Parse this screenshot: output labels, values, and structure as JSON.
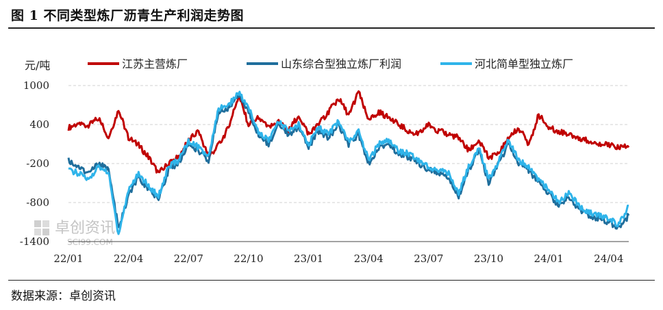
{
  "header": {
    "title": "图 1 不同类型炼厂沥青生产利润走势图"
  },
  "footer": {
    "source": "数据来源：卓创资讯"
  },
  "watermark": {
    "name": "卓创资讯",
    "site": "SCI99.COM"
  },
  "chart_data": {
    "type": "line",
    "ylabel": "元/吨",
    "ylim": [
      -1400,
      1000
    ],
    "yticks": [
      1000,
      400,
      -200,
      -800,
      -1400
    ],
    "xticks": [
      "22/01",
      "22/04",
      "22/07",
      "22/10",
      "23/01",
      "23/04",
      "23/07",
      "23/10",
      "24/01",
      "24/04"
    ],
    "xlim": [
      "22/01",
      "24/05"
    ],
    "grid": "horizontal-dashed",
    "legend": "top",
    "series": [
      {
        "name": "江苏主营炼厂",
        "color": "#c00000",
        "points": [
          [
            "22/01",
            350
          ],
          [
            "22/01.5",
            420
          ],
          [
            "22/02",
            380
          ],
          [
            "22/02.5",
            500
          ],
          [
            "22/03",
            200
          ],
          [
            "22/03.5",
            620
          ],
          [
            "22/04",
            200
          ],
          [
            "22/04.5",
            80
          ],
          [
            "22/05",
            -100
          ],
          [
            "22/05.5",
            -350
          ],
          [
            "22/06",
            -200
          ],
          [
            "22/06.5",
            -100
          ],
          [
            "22/07",
            150
          ],
          [
            "22/07.5",
            300
          ],
          [
            "22/08",
            -100
          ],
          [
            "22/08.5",
            80
          ],
          [
            "22/09",
            350
          ],
          [
            "22/09.5",
            850
          ],
          [
            "22/10",
            400
          ],
          [
            "22/10.5",
            500
          ],
          [
            "22/11",
            350
          ],
          [
            "22/11.5",
            450
          ],
          [
            "22/12",
            300
          ],
          [
            "22/12.5",
            550
          ],
          [
            "23/01",
            250
          ],
          [
            "23/01.5",
            400
          ],
          [
            "23/02",
            600
          ],
          [
            "23/02.5",
            800
          ],
          [
            "23/03",
            550
          ],
          [
            "23/03.5",
            900
          ],
          [
            "23/04",
            450
          ],
          [
            "23/04.5",
            600
          ],
          [
            "23/05",
            500
          ],
          [
            "23/05.5",
            400
          ],
          [
            "23/06",
            300
          ],
          [
            "23/06.5",
            250
          ],
          [
            "23/07",
            400
          ],
          [
            "23/07.5",
            300
          ],
          [
            "23/08",
            250
          ],
          [
            "23/08.5",
            200
          ],
          [
            "23/09",
            0
          ],
          [
            "23/09.5",
            150
          ],
          [
            "23/10",
            -100
          ],
          [
            "23/10.5",
            -50
          ],
          [
            "23/11",
            200
          ],
          [
            "23/11.5",
            350
          ],
          [
            "23/12",
            100
          ],
          [
            "23/12.5",
            550
          ],
          [
            "24/01",
            350
          ],
          [
            "24/01.5",
            300
          ],
          [
            "24/02",
            250
          ],
          [
            "24/02.5",
            200
          ],
          [
            "24/03",
            150
          ],
          [
            "24/03.5",
            100
          ],
          [
            "24/04",
            80
          ],
          [
            "24/04.5",
            50
          ],
          [
            "24/05",
            50
          ]
        ]
      },
      {
        "name": "山东综合型独立炼厂利润",
        "color": "#1f6e9c",
        "points": [
          [
            "22/01",
            -150
          ],
          [
            "22/01.5",
            -250
          ],
          [
            "22/02",
            -350
          ],
          [
            "22/02.5",
            -200
          ],
          [
            "22/03",
            -300
          ],
          [
            "22/03.5",
            -1200
          ],
          [
            "22/04",
            -700
          ],
          [
            "22/04.5",
            -400
          ],
          [
            "22/05",
            -600
          ],
          [
            "22/05.5",
            -750
          ],
          [
            "22/06",
            -300
          ],
          [
            "22/06.5",
            -200
          ],
          [
            "22/07",
            100
          ],
          [
            "22/07.5",
            0
          ],
          [
            "22/08",
            -150
          ],
          [
            "22/08.5",
            600
          ],
          [
            "22/09",
            650
          ],
          [
            "22/09.5",
            850
          ],
          [
            "22/10",
            600
          ],
          [
            "22/10.5",
            250
          ],
          [
            "22/11",
            100
          ],
          [
            "22/11.5",
            400
          ],
          [
            "22/12",
            250
          ],
          [
            "22/12.5",
            350
          ],
          [
            "23/01",
            50
          ],
          [
            "23/01.5",
            300
          ],
          [
            "23/02",
            200
          ],
          [
            "23/02.5",
            400
          ],
          [
            "23/03",
            100
          ],
          [
            "23/03.5",
            250
          ],
          [
            "23/04",
            -200
          ],
          [
            "23/04.5",
            50
          ],
          [
            "23/05",
            100
          ],
          [
            "23/05.5",
            -50
          ],
          [
            "23/06",
            -100
          ],
          [
            "23/06.5",
            -200
          ],
          [
            "23/07",
            -300
          ],
          [
            "23/07.5",
            -350
          ],
          [
            "23/08",
            -400
          ],
          [
            "23/08.5",
            -700
          ],
          [
            "23/09",
            -300
          ],
          [
            "23/09.5",
            0
          ],
          [
            "23/10",
            -500
          ],
          [
            "23/10.5",
            -200
          ],
          [
            "23/11",
            100
          ],
          [
            "23/11.5",
            -200
          ],
          [
            "23/12",
            -300
          ],
          [
            "23/12.5",
            -500
          ],
          [
            "24/01",
            -650
          ],
          [
            "24/01.5",
            -850
          ],
          [
            "24/02",
            -700
          ],
          [
            "24/02.5",
            -900
          ],
          [
            "24/03",
            -1000
          ],
          [
            "24/03.5",
            -1050
          ],
          [
            "24/04",
            -1100
          ],
          [
            "24/04.5",
            -1200
          ],
          [
            "24/05",
            -1000
          ]
        ]
      },
      {
        "name": "河北简单型独立炼厂",
        "color": "#2fb4ea",
        "points": [
          [
            "22/01",
            -300
          ],
          [
            "22/01.5",
            -350
          ],
          [
            "22/02",
            -450
          ],
          [
            "22/02.5",
            -250
          ],
          [
            "22/03",
            -350
          ],
          [
            "22/03.5",
            -1300
          ],
          [
            "22/04",
            -600
          ],
          [
            "22/04.5",
            -350
          ],
          [
            "22/05",
            -550
          ],
          [
            "22/05.5",
            -700
          ],
          [
            "22/06",
            -250
          ],
          [
            "22/06.5",
            -150
          ],
          [
            "22/07",
            150
          ],
          [
            "22/07.5",
            50
          ],
          [
            "22/08",
            -100
          ],
          [
            "22/08.5",
            650
          ],
          [
            "22/09",
            700
          ],
          [
            "22/09.5",
            900
          ],
          [
            "22/10",
            650
          ],
          [
            "22/10.5",
            300
          ],
          [
            "22/11",
            150
          ],
          [
            "22/11.5",
            450
          ],
          [
            "22/12",
            300
          ],
          [
            "22/12.5",
            400
          ],
          [
            "23/01",
            100
          ],
          [
            "23/01.5",
            350
          ],
          [
            "23/02",
            250
          ],
          [
            "23/02.5",
            450
          ],
          [
            "23/03",
            150
          ],
          [
            "23/03.5",
            300
          ],
          [
            "23/04",
            -150
          ],
          [
            "23/04.5",
            100
          ],
          [
            "23/05",
            150
          ],
          [
            "23/05.5",
            0
          ],
          [
            "23/06",
            -50
          ],
          [
            "23/06.5",
            -150
          ],
          [
            "23/07",
            -250
          ],
          [
            "23/07.5",
            -300
          ],
          [
            "23/08",
            -350
          ],
          [
            "23/08.5",
            -650
          ],
          [
            "23/09",
            -250
          ],
          [
            "23/09.5",
            50
          ],
          [
            "23/10",
            -450
          ],
          [
            "23/10.5",
            -150
          ],
          [
            "23/11",
            150
          ],
          [
            "23/11.5",
            -150
          ],
          [
            "23/12",
            -250
          ],
          [
            "23/12.5",
            -450
          ],
          [
            "24/01",
            -600
          ],
          [
            "24/01.5",
            -800
          ],
          [
            "24/02",
            -650
          ],
          [
            "24/02.5",
            -850
          ],
          [
            "24/03",
            -950
          ],
          [
            "24/03.5",
            -1000
          ],
          [
            "24/04",
            -1050
          ],
          [
            "24/04.5",
            -1150
          ],
          [
            "24/05",
            -850
          ]
        ]
      }
    ]
  }
}
